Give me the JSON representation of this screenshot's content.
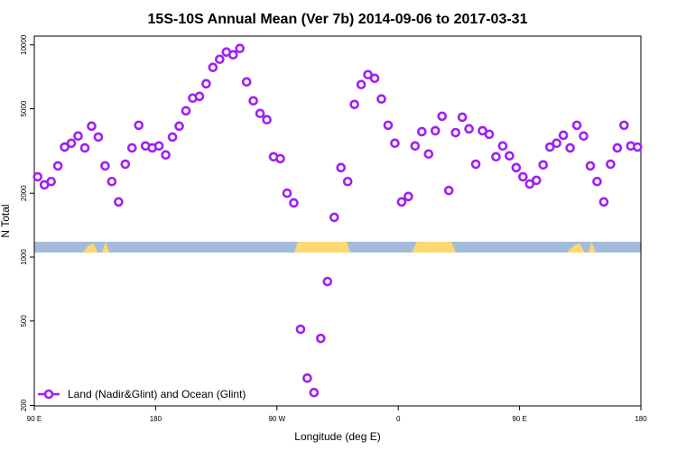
{
  "chart_data": {
    "type": "scatter",
    "title": "15S-10S Annual Mean (Ver 7b)   2014-09-06 to 2017-03-31",
    "xlabel": "Longitude (deg E)",
    "ylabel": "N Total",
    "series": [
      {
        "name": "Land (Nadir&Glint) and Ocean (Glint)",
        "color": "#a020f0",
        "x": [
          92.5,
          97.5,
          102.5,
          107.5,
          112.5,
          117.5,
          122.5,
          127.5,
          132.5,
          137.5,
          142.5,
          147.5,
          152.5,
          157.5,
          162.5,
          167.5,
          172.5,
          177.5,
          182.5,
          187.5,
          192.5,
          197.5,
          202.5,
          207.5,
          212.5,
          217.5,
          222.5,
          227.5,
          232.5,
          237.5,
          242.5,
          247.5,
          252.5,
          257.5,
          262.5,
          267.5,
          272.5,
          277.5,
          282.5,
          287.5,
          292.5,
          297.5,
          302.5,
          307.5,
          312.5,
          317.5,
          322.5,
          327.5,
          332.5,
          337.5,
          342.5,
          347.5,
          352.5,
          357.5,
          362.5,
          367.5,
          372.5,
          377.5,
          382.5,
          387.5,
          392.5,
          397.5,
          402.5,
          407.5,
          412.5,
          417.5,
          422.5,
          427.5,
          432.5,
          437.5,
          442.5,
          447.5,
          452.5,
          457.5,
          462.5,
          467.5,
          472.5,
          477.5,
          482.5,
          487.5,
          492.5,
          497.5,
          502.5,
          507.5,
          512.5,
          517.5,
          522.5,
          527.5,
          532.5,
          537.5
        ],
        "values": [
          2390,
          2190,
          2270,
          2690,
          3300,
          3440,
          3720,
          3270,
          4140,
          3680,
          2690,
          2270,
          1820,
          2740,
          3270,
          4180,
          3340,
          3270,
          3340,
          3030,
          3680,
          4140,
          4890,
          5610,
          5720,
          6560,
          7830,
          8550,
          9250,
          8980,
          9620,
          6690,
          5450,
          4750,
          4440,
          2970,
          2910,
          2000,
          1800,
          457,
          269,
          230,
          414,
          767,
          1540,
          2640,
          2270,
          5240,
          6500,
          7240,
          6960,
          5560,
          4180,
          3440,
          1820,
          1930,
          3340,
          3900,
          3060,
          3940,
          4610,
          2060,
          3860,
          4560,
          4020,
          2740,
          3940,
          3790,
          2970,
          3340,
          3000,
          2640,
          2390,
          2210,
          2300,
          2720,
          3300,
          3440,
          3750,
          3270,
          4180,
          3720,
          2690,
          2270,
          1820,
          2740,
          3270,
          4180,
          3340,
          3300
        ]
      }
    ],
    "xlim": [
      90,
      540
    ],
    "xticks": [
      {
        "value": 90,
        "label": "90 E"
      },
      180,
      {
        "value": 270,
        "label": "90 W"
      },
      {
        "value": 360,
        "label": "0"
      },
      {
        "value": 450,
        "label": "90 E"
      },
      {
        "value": 540,
        "label": "180"
      }
    ],
    "ylim": [
      199,
      11000
    ],
    "yticks": [
      200,
      500,
      1000,
      2000,
      5000,
      10000
    ],
    "log_y": true,
    "legend": "lower left"
  }
}
